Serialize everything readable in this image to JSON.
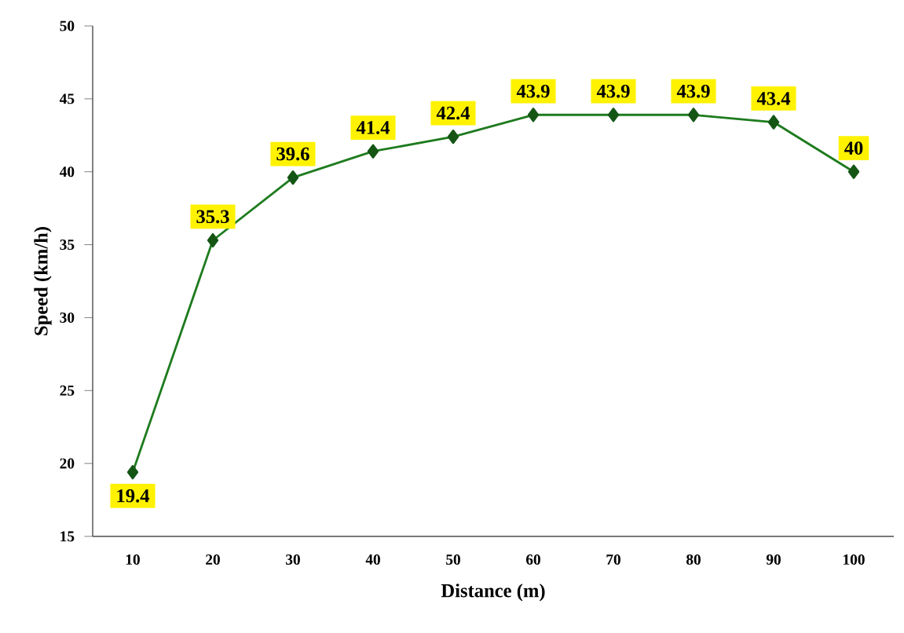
{
  "chart_data": {
    "type": "line",
    "xlabel": "Distance (m)",
    "ylabel": "Speed (km/h)",
    "categories": [
      "10",
      "20",
      "30",
      "40",
      "50",
      "60",
      "70",
      "80",
      "90",
      "100"
    ],
    "series": [
      {
        "color": "#1e7b1e",
        "values": [
          19.4,
          35.3,
          39.6,
          41.4,
          42.4,
          43.9,
          43.9,
          43.9,
          43.4,
          40
        ]
      }
    ],
    "ylim": [
      15,
      50
    ],
    "yticks": [
      15,
      20,
      25,
      30,
      35,
      40,
      45,
      50
    ],
    "marker": "diamond",
    "line_style": "solid",
    "data_labels": true,
    "grid": false
  }
}
